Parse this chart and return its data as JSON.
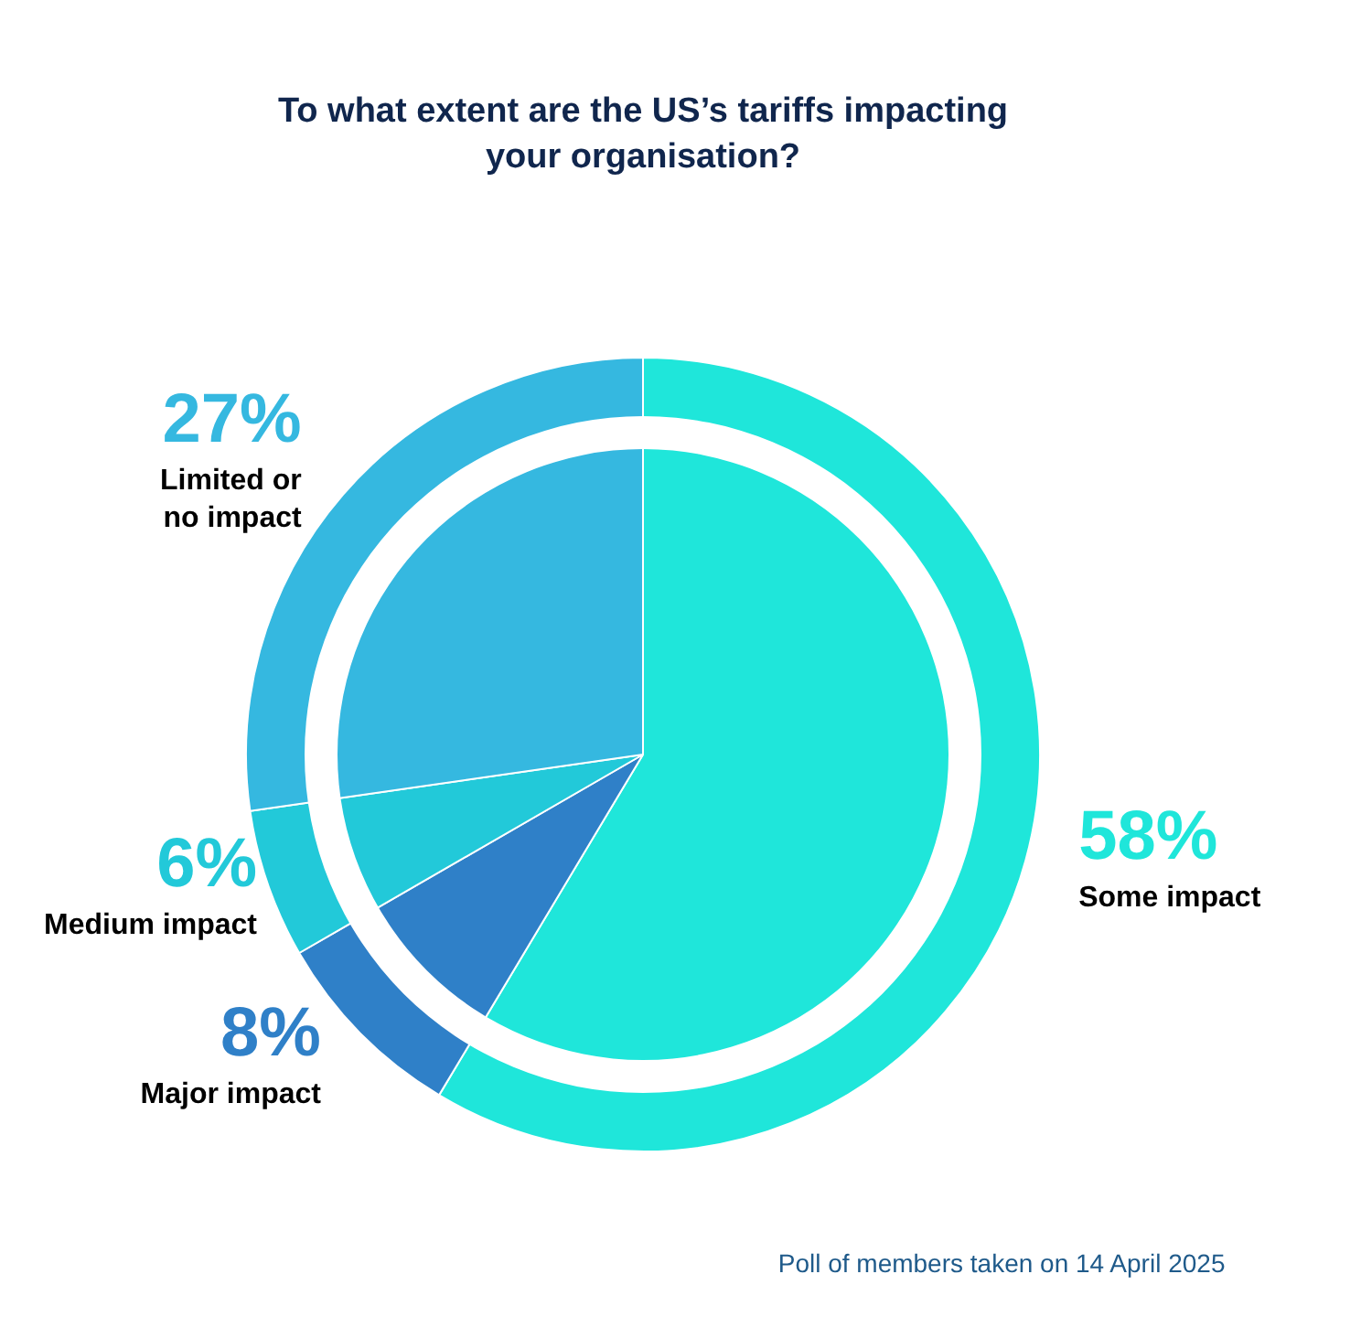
{
  "chart_data": {
    "type": "donut",
    "title": "To what extent are the US’s tariffs impacting\nyour organisation?",
    "categories": [
      "Some impact",
      "Major impact",
      "Medium impact",
      "Limited or\nno impact"
    ],
    "values": [
      58,
      8,
      6,
      27
    ],
    "colors": [
      "#1fe6da",
      "#2f80c8",
      "#22c9d9",
      "#35b8e0"
    ],
    "value_labels": [
      "58%",
      "8%",
      "6%",
      "27%"
    ],
    "annotations": [
      "Poll of members taken on 14 April 2025"
    ]
  }
}
